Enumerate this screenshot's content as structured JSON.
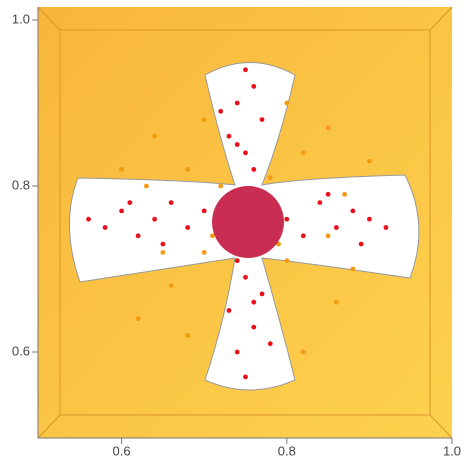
{
  "chart_data": {
    "type": "scatter",
    "xlim": [
      0.5,
      1.0
    ],
    "ylim": [
      0.5,
      1.0
    ],
    "xticks": [
      0.6,
      0.8,
      {
        "value": 1.0,
        "label": "1.0"
      }
    ],
    "yticks": [
      0.6,
      0.8,
      {
        "value": 1.0,
        "label": "1.0"
      }
    ],
    "series": [
      {
        "color": "#f39a10",
        "x": [
          0.64,
          0.68,
          0.7,
          0.82,
          0.85,
          0.8,
          0.66,
          0.62,
          0.86,
          0.88,
          0.68,
          0.82,
          0.7,
          0.8,
          0.6,
          0.9,
          0.72,
          0.78,
          0.65,
          0.85,
          0.71,
          0.79,
          0.63,
          0.87
        ],
        "values": [
          0.86,
          0.82,
          0.88,
          0.84,
          0.87,
          0.9,
          0.68,
          0.64,
          0.66,
          0.7,
          0.62,
          0.6,
          0.72,
          0.71,
          0.82,
          0.83,
          0.8,
          0.81,
          0.72,
          0.74,
          0.74,
          0.73,
          0.8,
          0.79
        ]
      },
      {
        "color": "#e8101a",
        "x": [
          0.56,
          0.58,
          0.6,
          0.62,
          0.64,
          0.66,
          0.68,
          0.7,
          0.8,
          0.82,
          0.84,
          0.86,
          0.88,
          0.9,
          0.92,
          0.61,
          0.65,
          0.85,
          0.89,
          0.75,
          0.74,
          0.76,
          0.73,
          0.77,
          0.75,
          0.74,
          0.76,
          0.75,
          0.73,
          0.77,
          0.74,
          0.76,
          0.75,
          0.78,
          0.72,
          0.76,
          0.74
        ],
        "values": [
          0.76,
          0.75,
          0.77,
          0.74,
          0.76,
          0.78,
          0.75,
          0.77,
          0.76,
          0.74,
          0.78,
          0.75,
          0.77,
          0.76,
          0.75,
          0.78,
          0.73,
          0.79,
          0.73,
          0.57,
          0.6,
          0.63,
          0.65,
          0.67,
          0.69,
          0.71,
          0.82,
          0.84,
          0.86,
          0.88,
          0.9,
          0.92,
          0.94,
          0.61,
          0.89,
          0.66,
          0.85
        ]
      }
    ]
  }
}
